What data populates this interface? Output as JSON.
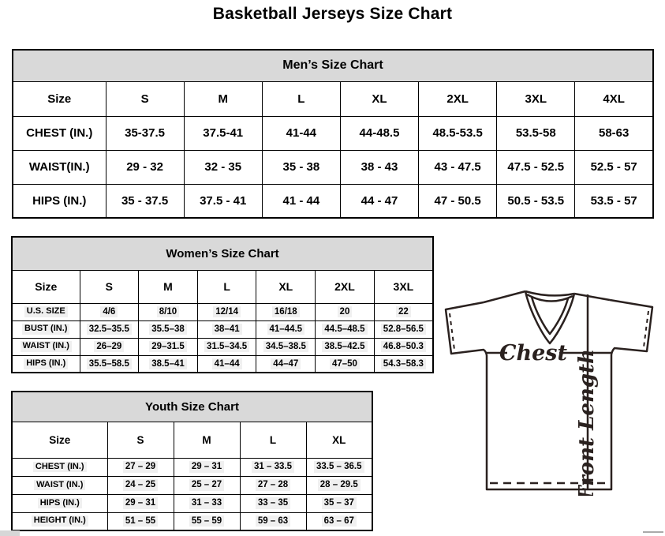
{
  "page_title": "Basketball Jerseys Size Chart",
  "tables": {
    "men": {
      "title": "Men’s Size Chart",
      "size_header": [
        "Size",
        "S",
        "M",
        "L",
        "XL",
        "2XL",
        "3XL",
        "4XL"
      ],
      "rows": [
        {
          "label": "CHEST (IN.)",
          "values": [
            "35-37.5",
            "37.5-41",
            "41-44",
            "44-48.5",
            "48.5-53.5",
            "53.5-58",
            "58-63"
          ]
        },
        {
          "label": "WAIST(IN.)",
          "values": [
            "29 - 32",
            "32 - 35",
            "35 - 38",
            "38 - 43",
            "43 - 47.5",
            "47.5 - 52.5",
            "52.5 - 57"
          ]
        },
        {
          "label": "HIPS (IN.)",
          "values": [
            "35 - 37.5",
            "37.5 - 41",
            "41 - 44",
            "44 - 47",
            "47 - 50.5",
            "50.5 - 53.5",
            "53.5 - 57"
          ]
        }
      ]
    },
    "women": {
      "title": "Women’s Size Chart",
      "size_header": [
        "Size",
        "S",
        "M",
        "L",
        "XL",
        "2XL",
        "3XL"
      ],
      "rows": [
        {
          "label": "U.S. SIZE",
          "values": [
            "4/6",
            "8/10",
            "12/14",
            "16/18",
            "20",
            "22"
          ]
        },
        {
          "label": "BUST (IN.)",
          "values": [
            "32.5–35.5",
            "35.5–38",
            "38–41",
            "41–44.5",
            "44.5–48.5",
            "52.8–56.5"
          ]
        },
        {
          "label": "WAIST (IN.)",
          "values": [
            "26–29",
            "29–31.5",
            "31.5–34.5",
            "34.5–38.5",
            "38.5–42.5",
            "46.8–50.3"
          ]
        },
        {
          "label": "HIPS (IN.)",
          "values": [
            "35.5–58.5",
            "38.5–41",
            "41–44",
            "44–47",
            "47–50",
            "54.3–58.3"
          ]
        }
      ]
    },
    "youth": {
      "title": "Youth Size Chart",
      "size_header": [
        "Size",
        "S",
        "M",
        "L",
        "XL"
      ],
      "rows": [
        {
          "label": "CHEST (IN.)",
          "values": [
            "27 – 29",
            "29 – 31",
            "31 – 33.5",
            "33.5 – 36.5"
          ]
        },
        {
          "label": "WAIST (IN.)",
          "values": [
            "24 – 25",
            "25 – 27",
            "27 – 28",
            "28 – 29.5"
          ]
        },
        {
          "label": "HIPS (IN.)",
          "values": [
            "29 – 31",
            "31 – 33",
            "33 – 35",
            "35 – 37"
          ]
        },
        {
          "label": "HEIGHT (IN.)",
          "values": [
            "51 – 55",
            "55 – 59",
            "59 – 63",
            "63 – 67"
          ]
        }
      ]
    }
  },
  "diagram": {
    "chest_label": "Chest",
    "front_length_label": "Front Length"
  },
  "colors": {
    "table_band_bg": "#d9d9d9",
    "table_border": "#000000",
    "diagram_stroke": "#2a211f"
  }
}
